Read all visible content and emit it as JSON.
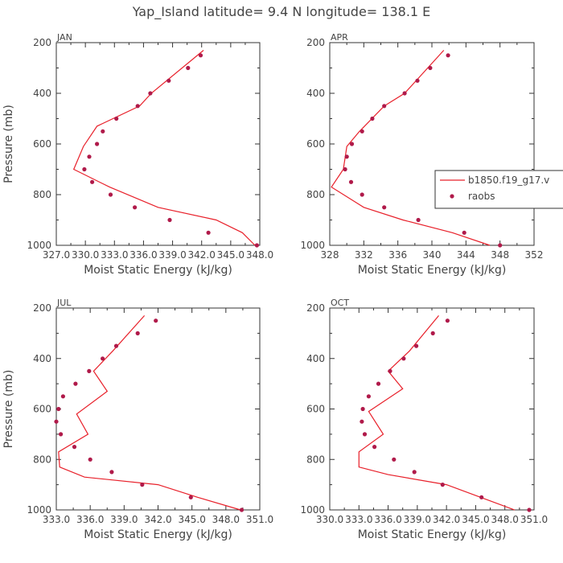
{
  "figure": {
    "title": "Yap_Island  latitude= 9.4 N longitude= 138.1 E"
  },
  "colors": {
    "model": "#e8202a",
    "obs": "#b01a4a",
    "axis": "#333333"
  },
  "legend": {
    "placement": "right, overlapping APR panel",
    "entries": [
      {
        "label": "b1850.f19_g17.v",
        "style": "line"
      },
      {
        "label": "raobs",
        "style": "marker"
      }
    ]
  },
  "chart_data": [
    {
      "type": "line",
      "panel_title": "JAN",
      "xlabel": "Moist Static Energy (kJ/kg)",
      "ylabel": "Pressure (mb)",
      "xlim": [
        327,
        348
      ],
      "ylim": [
        1000,
        200
      ],
      "xticks": [
        "327.0",
        "330.0",
        "333.0",
        "336.0",
        "339.0",
        "342.0",
        "345.0",
        "348.0"
      ],
      "yticks": [
        "200",
        "400",
        "600",
        "800",
        "1000"
      ],
      "series": [
        {
          "name": "b1850.f19_g17.v",
          "style": "line",
          "x": [
            342.2,
            336.8,
            335.6,
            331.2,
            329.8,
            328.8,
            332.5,
            337.5,
            343.5,
            346.2,
            347.5
          ],
          "y": [
            230,
            400,
            450,
            530,
            610,
            700,
            770,
            850,
            900,
            950,
            1000
          ]
        },
        {
          "name": "raobs",
          "style": "marker",
          "x": [
            341.9,
            340.6,
            338.6,
            336.7,
            335.4,
            333.2,
            331.8,
            331.2,
            330.4,
            329.9,
            330.7,
            332.6,
            335.1,
            338.7,
            342.7,
            347.7
          ],
          "y": [
            250,
            300,
            350,
            400,
            450,
            500,
            550,
            600,
            650,
            700,
            750,
            800,
            850,
            900,
            950,
            1000
          ]
        }
      ]
    },
    {
      "type": "line",
      "panel_title": "APR",
      "xlabel": "Moist Static Energy (kJ/kg)",
      "ylabel": "",
      "xlim": [
        328,
        352
      ],
      "ylim": [
        1000,
        200
      ],
      "xticks": [
        "328",
        "332",
        "336",
        "340",
        "344",
        "348",
        "352"
      ],
      "yticks": [
        "200",
        "400",
        "600",
        "800",
        "1000"
      ],
      "series": [
        {
          "name": "b1850.f19_g17.v",
          "style": "line",
          "x": [
            341.4,
            336.8,
            334.4,
            331.5,
            330.0,
            329.6,
            328.2,
            332.0,
            336.6,
            342.4,
            346.8
          ],
          "y": [
            230,
            400,
            450,
            550,
            610,
            700,
            770,
            850,
            900,
            950,
            1000
          ]
        },
        {
          "name": "raobs",
          "style": "marker",
          "x": [
            341.9,
            339.8,
            338.3,
            336.8,
            334.4,
            333.0,
            331.8,
            330.6,
            330.0,
            329.8,
            330.5,
            331.8,
            334.4,
            338.4,
            343.8,
            348.0
          ],
          "y": [
            250,
            300,
            350,
            400,
            450,
            500,
            550,
            600,
            650,
            700,
            750,
            800,
            850,
            900,
            950,
            1000
          ]
        }
      ]
    },
    {
      "type": "line",
      "panel_title": "JUL",
      "xlabel": "Moist Static Energy (kJ/kg)",
      "ylabel": "Pressure (mb)",
      "xlim": [
        333,
        351
      ],
      "ylim": [
        1000,
        200
      ],
      "xticks": [
        "333.0",
        "336.0",
        "339.0",
        "342.0",
        "345.0",
        "348.0",
        "351.0"
      ],
      "yticks": [
        "200",
        "400",
        "600",
        "800",
        "1000"
      ],
      "series": [
        {
          "name": "b1850.f19_g17.v",
          "style": "line",
          "x": [
            340.8,
            338.0,
            336.3,
            337.5,
            334.8,
            335.8,
            333.2,
            333.3,
            335.5,
            342.0,
            345.5,
            349.3
          ],
          "y": [
            230,
            370,
            450,
            530,
            620,
            700,
            770,
            830,
            870,
            900,
            950,
            1000
          ]
        },
        {
          "name": "raobs",
          "style": "marker",
          "x": [
            341.8,
            340.2,
            338.3,
            337.1,
            335.9,
            334.7,
            333.6,
            333.2,
            333.0,
            333.4,
            334.6,
            336.0,
            337.9,
            340.6,
            344.9,
            349.4
          ],
          "y": [
            250,
            300,
            350,
            400,
            450,
            500,
            550,
            600,
            650,
            700,
            750,
            800,
            850,
            900,
            950,
            1000
          ]
        }
      ]
    },
    {
      "type": "line",
      "panel_title": "OCT",
      "xlabel": "Moist Static Energy (kJ/kg)",
      "ylabel": "",
      "xlim": [
        330,
        351
      ],
      "ylim": [
        1000,
        200
      ],
      "xticks": [
        "330.0",
        "333.0",
        "336.0",
        "339.0",
        "342.0",
        "345.0",
        "348.0",
        "351.0"
      ],
      "yticks": [
        "200",
        "400",
        "600",
        "800",
        "1000"
      ],
      "series": [
        {
          "name": "b1850.f19_g17.v",
          "style": "line",
          "x": [
            341.2,
            338.2,
            336.0,
            337.5,
            334.0,
            335.5,
            333.0,
            333.0,
            336.0,
            342.0,
            345.5,
            349.0
          ],
          "y": [
            230,
            370,
            450,
            520,
            610,
            700,
            770,
            830,
            860,
            900,
            950,
            1000
          ]
        },
        {
          "name": "raobs",
          "style": "marker",
          "x": [
            342.1,
            340.6,
            338.9,
            337.6,
            336.2,
            335.0,
            334.0,
            333.4,
            333.3,
            333.6,
            334.6,
            336.6,
            338.7,
            341.6,
            345.6,
            350.5
          ],
          "y": [
            250,
            300,
            350,
            400,
            450,
            500,
            550,
            600,
            650,
            700,
            750,
            800,
            850,
            900,
            950,
            1000
          ]
        }
      ]
    }
  ]
}
